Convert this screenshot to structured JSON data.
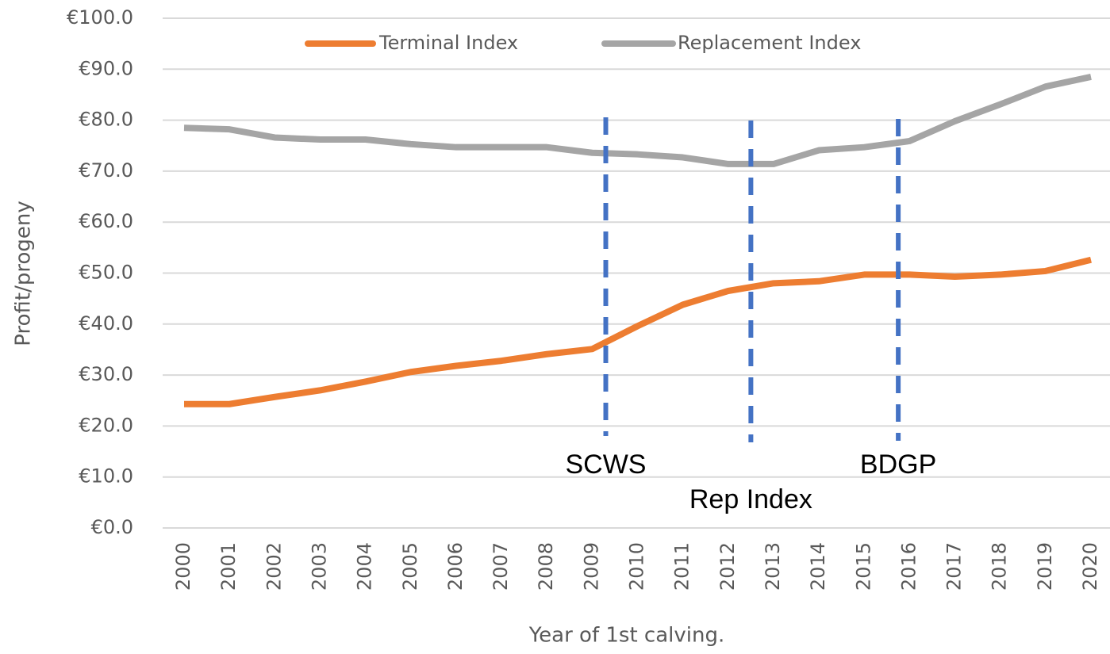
{
  "chart_data": {
    "type": "line",
    "x_label": "Year of 1st calving.",
    "y_label": "Profit/progeny",
    "x": [
      2000,
      2001,
      2002,
      2003,
      2004,
      2005,
      2006,
      2007,
      2008,
      2009,
      2010,
      2011,
      2012,
      2013,
      2014,
      2015,
      2016,
      2017,
      2018,
      2019,
      2020
    ],
    "xlim": [
      2000,
      2020
    ],
    "xticks": [
      2000,
      2001,
      2002,
      2003,
      2004,
      2005,
      2006,
      2007,
      2008,
      2009,
      2010,
      2011,
      2012,
      2013,
      2014,
      2015,
      2016,
      2017,
      2018,
      2019,
      2020
    ],
    "ylim": [
      0,
      100
    ],
    "yticks": [
      {
        "value": 0,
        "label": "€0.0"
      },
      {
        "value": 10,
        "label": "€10.0"
      },
      {
        "value": 20,
        "label": "€20.0"
      },
      {
        "value": 30,
        "label": "€30.0"
      },
      {
        "value": 40,
        "label": "€40.0"
      },
      {
        "value": 50,
        "label": "€50.0"
      },
      {
        "value": 60,
        "label": "€60.0"
      },
      {
        "value": 70,
        "label": "€70.0"
      },
      {
        "value": 80,
        "label": "€80.0"
      },
      {
        "value": 90,
        "label": "€90.0"
      },
      {
        "value": 100,
        "label": "€100.0"
      }
    ],
    "grid": true,
    "legend": "top",
    "series": [
      {
        "name": "Terminal Index",
        "color": "#ed7d31",
        "values": [
          24.3,
          24.3,
          25.7,
          27,
          28.7,
          30.6,
          31.8,
          32.8,
          34.1,
          35.1,
          39.6,
          43.8,
          46.5,
          48,
          48.4,
          49.7,
          49.7,
          49.3,
          49.7,
          50.4,
          52.6
        ]
      },
      {
        "name": "Replacement Index",
        "color": "#a5a5a5",
        "values": [
          78.5,
          78.2,
          76.6,
          76.2,
          76.2,
          75.3,
          74.7,
          74.7,
          74.7,
          73.6,
          73.3,
          72.7,
          71.4,
          71.4,
          74.1,
          74.7,
          75.9,
          79.8,
          83.1,
          86.6,
          88.5
        ]
      }
    ],
    "annotation_color": "#4472c4",
    "annotations": [
      {
        "text": "SCWS",
        "x": 2009.3
      },
      {
        "text": "Rep Index",
        "x": 2012.5
      },
      {
        "text": "BDGP",
        "x": 2015.75
      }
    ]
  }
}
